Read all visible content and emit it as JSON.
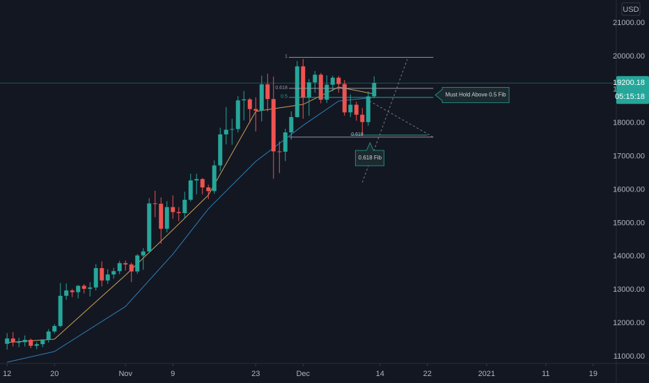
{
  "chart_data": {
    "type": "candlestick",
    "currency": "USD",
    "up_color": "#26a69a",
    "down_color": "#ef5350",
    "open": [
      11380,
      11540,
      11425,
      11430,
      11500,
      11320,
      11370,
      11510,
      11750,
      11915,
      12820,
      12980,
      12930,
      13120,
      13030,
      13070,
      13650,
      13280,
      13460,
      13560,
      13800,
      13760,
      13550,
      14030,
      14150,
      15590,
      15580,
      14830,
      15480,
      15330,
      15300,
      15700,
      16280,
      16320,
      16070,
      15960,
      16730,
      17660,
      17800,
      17820,
      18680,
      18710,
      18420,
      18370,
      19160,
      18720,
      17150,
      17140,
      17720,
      18180,
      19700,
      18770,
      19220,
      19450,
      18700,
      19150,
      19360,
      19170,
      18320,
      18550,
      18250,
      18030,
      18800
    ],
    "high": [
      11700,
      11730,
      11560,
      11630,
      11540,
      11430,
      11520,
      11820,
      11970,
      13200,
      13190,
      13030,
      13140,
      13170,
      13230,
      13770,
      13850,
      13620,
      13660,
      13870,
      13880,
      13810,
      14070,
      14250,
      15750,
      15970,
      15770,
      15660,
      15830,
      15480,
      15940,
      16480,
      16480,
      16350,
      16150,
      16880,
      17860,
      18480,
      18130,
      18810,
      18960,
      18750,
      18770,
      19420,
      19480,
      19390,
      17450,
      17830,
      18350,
      19860,
      19920,
      19320,
      19560,
      19500,
      19430,
      19420,
      19410,
      19290,
      18860,
      18640,
      18450,
      18950,
      19400
    ],
    "low": [
      11210,
      11300,
      11280,
      11300,
      11250,
      11220,
      11280,
      11420,
      11690,
      11880,
      12700,
      12780,
      12740,
      12890,
      12800,
      12980,
      13100,
      13180,
      13330,
      13470,
      13580,
      13230,
      13480,
      13600,
      14100,
      15180,
      14380,
      14720,
      15130,
      15060,
      15130,
      15650,
      15860,
      15860,
      15720,
      15880,
      16560,
      17360,
      17350,
      17720,
      18080,
      18000,
      17750,
      18050,
      18350,
      16330,
      16500,
      16860,
      17500,
      18160,
      18130,
      18220,
      18910,
      18590,
      18600,
      18950,
      18910,
      18220,
      18180,
      18070,
      17620,
      17920,
      18750
    ],
    "close": [
      11540,
      11425,
      11430,
      11500,
      11320,
      11370,
      11510,
      11750,
      11915,
      12820,
      12980,
      12930,
      13120,
      13030,
      13070,
      13650,
      13280,
      13460,
      13560,
      13800,
      13760,
      13550,
      14030,
      14150,
      15590,
      15580,
      14830,
      15480,
      15330,
      15300,
      15700,
      16280,
      16320,
      16070,
      15960,
      16730,
      17660,
      17800,
      17820,
      18680,
      18710,
      18420,
      18370,
      19160,
      18720,
      17150,
      17140,
      17720,
      18180,
      19700,
      18770,
      19220,
      19450,
      18700,
      19150,
      19360,
      19170,
      18320,
      18550,
      18250,
      18030,
      18800,
      19200.18
    ],
    "series": [
      {
        "color": "#c8a15a",
        "x": [
          0,
          8,
          20,
          28,
          34,
          42,
          50,
          56,
          62
        ],
        "values": [
          11420,
          11520,
          13440,
          14800,
          15840,
          18350,
          18560,
          19080,
          18870
        ]
      },
      {
        "color": "#2e7fb8",
        "x": [
          0,
          8,
          20,
          28,
          34,
          42,
          50,
          56,
          62
        ],
        "values": [
          10830,
          11150,
          12500,
          14070,
          15430,
          16850,
          17930,
          18660,
          18770
        ]
      }
    ],
    "xlim": [
      -1.2,
      102.9
    ],
    "ylim": [
      10790,
      21690
    ],
    "xticks": [
      {
        "value": 0,
        "label": "12"
      },
      {
        "value": 8,
        "label": "20"
      },
      {
        "value": 20,
        "label": "Nov"
      },
      {
        "value": 28,
        "label": "9"
      },
      {
        "value": 42,
        "label": "23"
      },
      {
        "value": 50,
        "label": "Dec"
      },
      {
        "value": 63,
        "label": "14"
      },
      {
        "value": 71,
        "label": "22"
      },
      {
        "value": 81,
        "label": "2021"
      },
      {
        "value": 91,
        "label": "11"
      },
      {
        "value": 99,
        "label": "19"
      }
    ],
    "yticks": [
      {
        "value": 11000,
        "label": "11000.00"
      },
      {
        "value": 12000,
        "label": "12000.00"
      },
      {
        "value": 13000,
        "label": "13000.00"
      },
      {
        "value": 14000,
        "label": "14000.00"
      },
      {
        "value": 15000,
        "label": "15000.00"
      },
      {
        "value": 16000,
        "label": "16000.00"
      },
      {
        "value": 17000,
        "label": "17000.00"
      },
      {
        "value": 18000,
        "label": "18000.00"
      },
      {
        "value": 19000,
        "label": "19000.00"
      },
      {
        "value": 20000,
        "label": "20000.00"
      },
      {
        "value": 21000,
        "label": "21000.00"
      }
    ],
    "last_price": 19200.18,
    "countdown": "05:15:18",
    "fib": {
      "x": [
        47.6,
        72
      ],
      "levels": [
        {
          "label": "1",
          "value": 19970,
          "color": "#9598a1"
        },
        {
          "label": "0.618",
          "value": 19040,
          "color": "#9598a1"
        },
        {
          "label": "0.5",
          "value": 18770,
          "color": "#26a69a"
        },
        {
          "value": 17580,
          "color": "#9598a1"
        }
      ]
    },
    "fib_small": {
      "label": "0.618",
      "x": [
        58,
        71
      ],
      "value": 17640,
      "color": "#26a69a"
    },
    "trend_lines": [
      {
        "x": [
          60,
          67.6
        ],
        "y": [
          16219,
          19914
        ]
      },
      {
        "x": [
          61.2,
          72
        ],
        "y": [
          18662,
          17576
        ]
      }
    ],
    "callouts": [
      {
        "text": "Must Hold Above 0.5 Fib",
        "x": 73.5,
        "y": 18840
      },
      {
        "text": "0.618 Fib",
        "x": 61.3,
        "y": 16950
      }
    ]
  }
}
